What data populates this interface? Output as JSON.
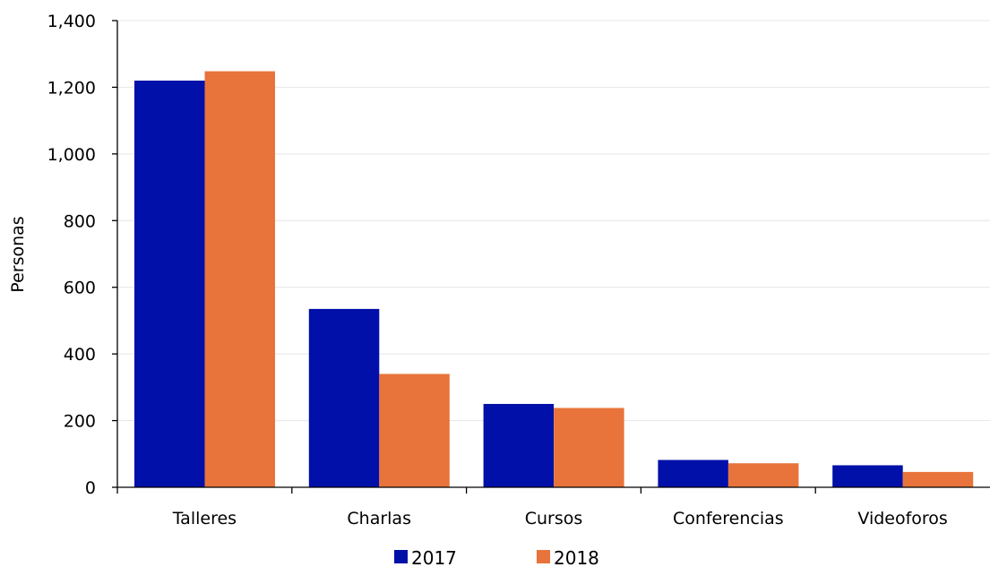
{
  "chart_data": {
    "type": "bar",
    "categories": [
      "Talleres",
      "Charlas",
      "Cursos",
      "Conferencias",
      "Videoforos"
    ],
    "series": [
      {
        "name": "2017",
        "color": "#0010A8",
        "values": [
          1220,
          535,
          250,
          82,
          66
        ]
      },
      {
        "name": "2018",
        "color": "#E8743B",
        "values": [
          1248,
          340,
          238,
          72,
          46
        ]
      }
    ],
    "ylabel": "Personas",
    "xlabel": "",
    "ylim": [
      0,
      1400
    ],
    "yticks": [
      0,
      200,
      400,
      600,
      800,
      1000,
      1200,
      1400
    ],
    "ytick_labels": [
      "0",
      "200",
      "400",
      "600",
      "800",
      "1,000",
      "1,200",
      "1,400"
    ],
    "grid": "horizontal",
    "legend_position": "bottom"
  }
}
